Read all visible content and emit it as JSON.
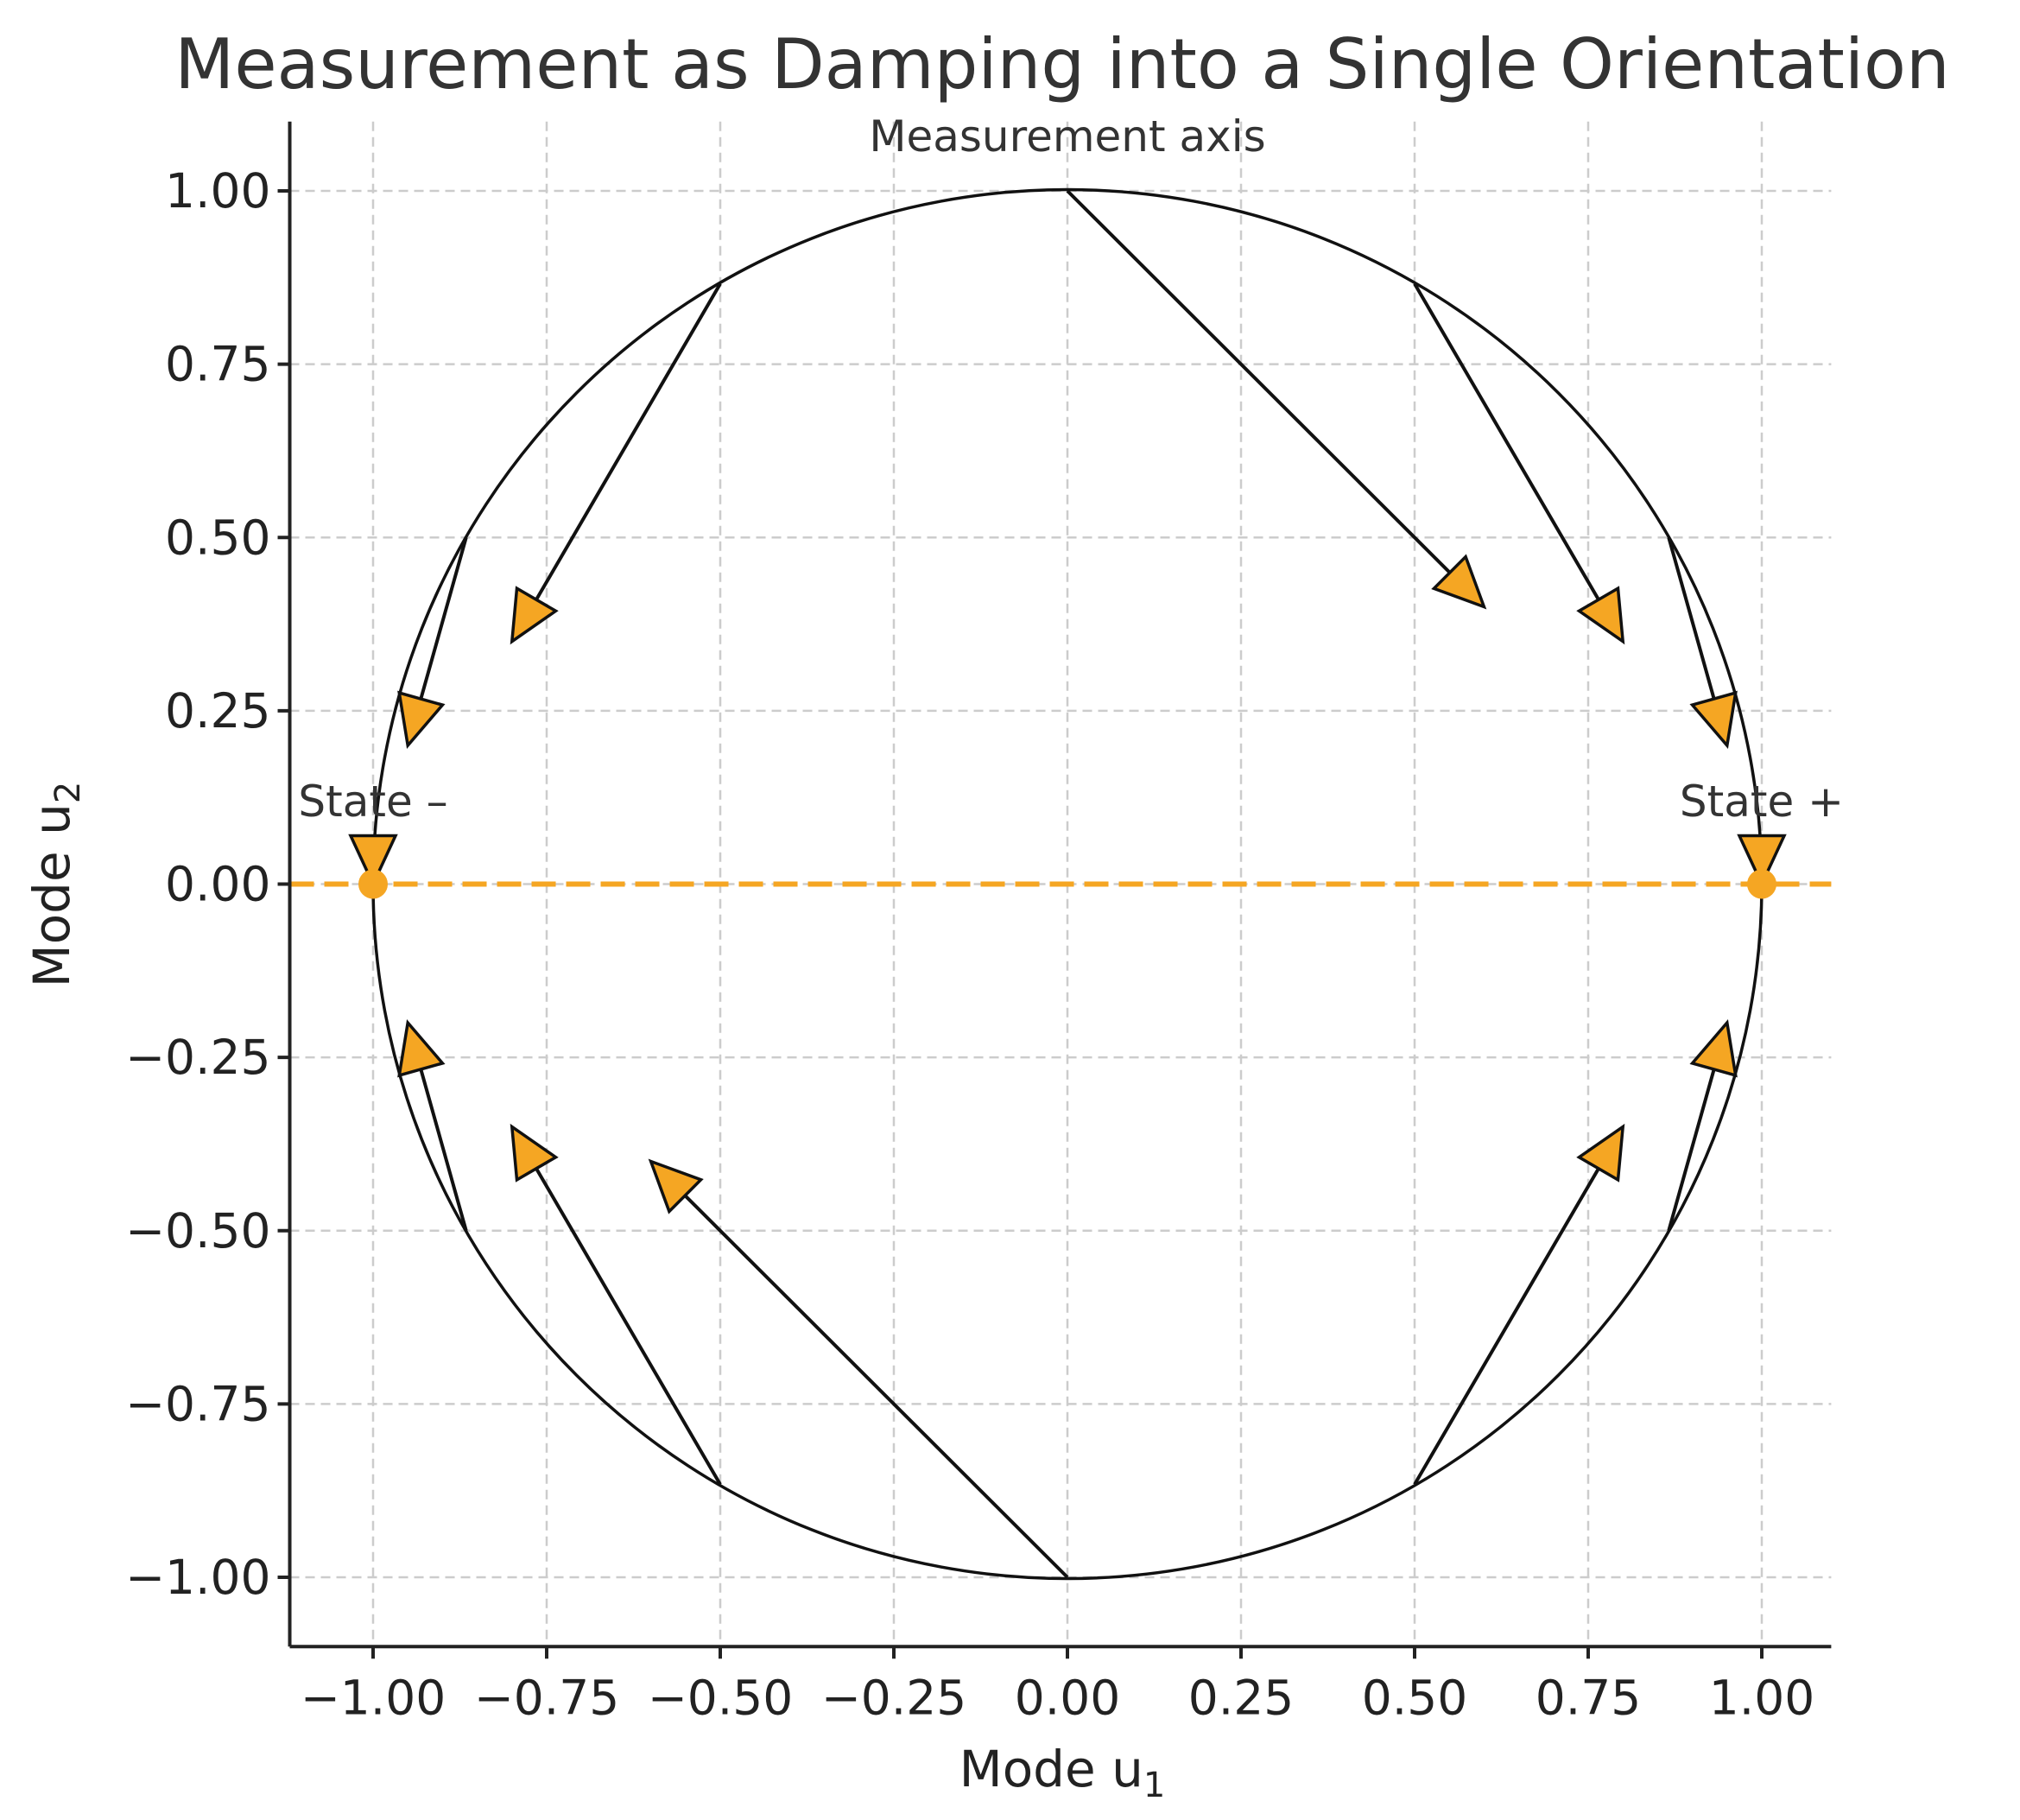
{
  "chart_data": {
    "type": "vector-field",
    "title": "Measurement as Damping into a Single Orientation",
    "xlabel": "Mode u",
    "xlabel_sub": "1",
    "ylabel": "Mode u",
    "ylabel_sub": "2",
    "xlim": [
      -1.12,
      1.1
    ],
    "ylim": [
      -1.1,
      1.1
    ],
    "grid": true,
    "x_ticks": [
      -1.0,
      -0.75,
      -0.5,
      -0.25,
      0.0,
      0.25,
      0.5,
      0.75,
      1.0
    ],
    "y_ticks": [
      -1.0,
      -0.75,
      -0.5,
      -0.25,
      0.0,
      0.25,
      0.5,
      0.75,
      1.0
    ],
    "x_tick_labels": [
      "−1.00",
      "−0.75",
      "−0.50",
      "−0.25",
      "0.00",
      "0.25",
      "0.50",
      "0.75",
      "1.00"
    ],
    "y_tick_labels": [
      "−1.00",
      "−0.75",
      "−0.50",
      "−0.25",
      "0.00",
      "0.25",
      "0.50",
      "0.75",
      "1.00"
    ],
    "unit_circle": {
      "center": [
        0,
        0
      ],
      "radius": 1.0
    },
    "measurement_axis": {
      "y": 0,
      "from_x": -1.12,
      "to_x": 1.1,
      "color": "#F5A623",
      "style": "dashed"
    },
    "arrows": [
      {
        "from": [
          1.0,
          0.0
        ],
        "to": [
          1.0,
          0.0
        ]
      },
      {
        "from": [
          0.866,
          0.5
        ],
        "to": [
          0.95,
          0.2
        ]
      },
      {
        "from": [
          0.5,
          0.866
        ],
        "to": [
          0.8,
          0.35
        ]
      },
      {
        "from": [
          0.0,
          1.0
        ],
        "to": [
          0.6,
          0.4
        ]
      },
      {
        "from": [
          -0.5,
          0.866
        ],
        "to": [
          -0.8,
          0.35
        ]
      },
      {
        "from": [
          -0.866,
          0.5
        ],
        "to": [
          -0.95,
          0.2
        ]
      },
      {
        "from": [
          -1.0,
          0.0
        ],
        "to": [
          -1.0,
          0.0
        ]
      },
      {
        "from": [
          -0.866,
          -0.5
        ],
        "to": [
          -0.95,
          -0.2
        ]
      },
      {
        "from": [
          -0.5,
          -0.866
        ],
        "to": [
          -0.8,
          -0.35
        ]
      },
      {
        "from": [
          0.0,
          -1.0
        ],
        "to": [
          -0.6,
          -0.4
        ]
      },
      {
        "from": [
          0.5,
          -0.866
        ],
        "to": [
          0.8,
          -0.35
        ]
      },
      {
        "from": [
          0.866,
          -0.5
        ],
        "to": [
          0.95,
          -0.2
        ]
      }
    ],
    "states": [
      {
        "label": "State –",
        "x": -1.0,
        "y": 0.0
      },
      {
        "label": "State +",
        "x": 1.0,
        "y": 0.0
      }
    ],
    "annotations": [
      {
        "text": "Measurement axis",
        "x": 0.0,
        "y": 1.08
      },
      {
        "text": "State –",
        "x": -1.0,
        "y": 0.12
      },
      {
        "text": "State +",
        "x": 1.0,
        "y": 0.12
      }
    ],
    "colors": {
      "accent": "#F5A623",
      "line": "#111111",
      "grid": "#cccccc"
    }
  }
}
